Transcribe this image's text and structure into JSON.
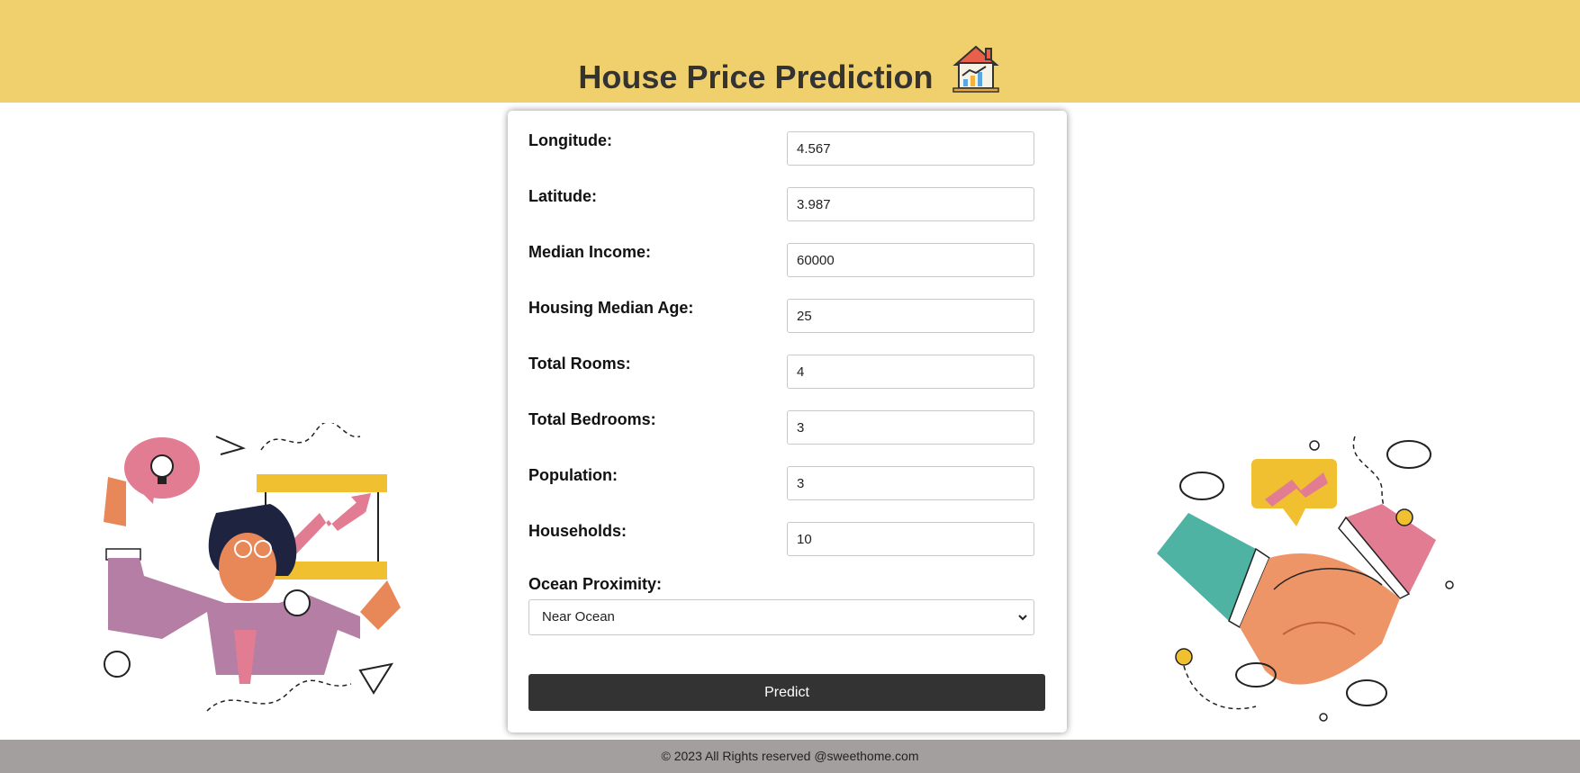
{
  "header": {
    "title": "House Price Prediction",
    "icon": "house-chart-icon",
    "bg_color": "#f0d06c"
  },
  "form": {
    "fields": [
      {
        "label": "Longitude:",
        "value": "4.567"
      },
      {
        "label": "Latitude:",
        "value": "3.987"
      },
      {
        "label": "Median Income:",
        "value": "60000"
      },
      {
        "label": "Housing Median Age:",
        "value": "25"
      },
      {
        "label": "Total Rooms:",
        "value": "4"
      },
      {
        "label": "Total Bedrooms:",
        "value": "3"
      },
      {
        "label": "Population:",
        "value": "3"
      },
      {
        "label": "Households:",
        "value": "10"
      }
    ],
    "ocean": {
      "label": "Ocean Proximity:",
      "selected": "Near Ocean"
    },
    "predict_label": "Predict",
    "button_color": "#333333"
  },
  "illustrations": {
    "left": "businessman-growth-illustration",
    "right": "handshake-illustration"
  },
  "footer": {
    "text": "© 2023 All Rights reserved @sweethome.com",
    "bg_color": "#a39f9f"
  }
}
